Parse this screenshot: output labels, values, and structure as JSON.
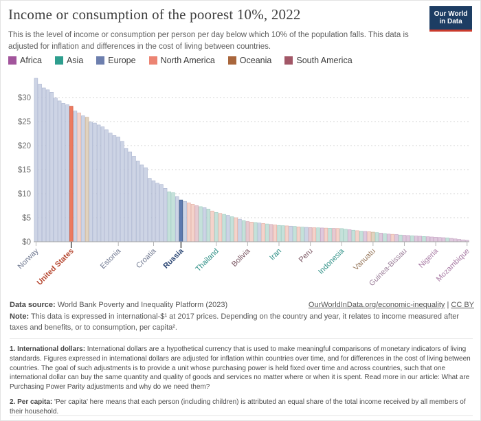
{
  "header": {
    "logo_line1": "Our World",
    "logo_line2": "in Data",
    "logo_bg": "#1d3d63",
    "logo_accent": "#cb3b2d"
  },
  "legend": {
    "items": [
      {
        "label": "Africa",
        "color": "#a2559c"
      },
      {
        "label": "Asia",
        "color": "#2e9e8e"
      },
      {
        "label": "Europe",
        "color": "#6d7fae"
      },
      {
        "label": "North America",
        "color": "#ec8473"
      },
      {
        "label": "Oceania",
        "color": "#a9663c"
      },
      {
        "label": "South America",
        "color": "#a25767"
      }
    ]
  },
  "chart_data": {
    "type": "bar",
    "title": "Income or consumption of the poorest 10%, 2022",
    "subtitle": "This is the level of income or consumption per person per day below which 10% of the population falls. This data is adjusted for inflation and differences in the cost of living between countries.",
    "xlabel": "",
    "ylabel": "",
    "ylim": [
      0,
      35
    ],
    "grid": "dashed-horizontal",
    "y_tick_values": [
      0,
      5,
      10,
      15,
      20,
      25,
      30
    ],
    "y_tick_prefix": "$",
    "values": [
      34.0,
      32.8,
      32.0,
      31.6,
      31.1,
      29.9,
      29.3,
      28.8,
      28.5,
      28.2,
      27.2,
      26.8,
      26.2,
      25.9,
      24.9,
      24.7,
      24.3,
      23.9,
      23.3,
      22.6,
      22.1,
      21.8,
      20.9,
      19.4,
      18.7,
      17.8,
      16.8,
      16.0,
      15.4,
      13.2,
      12.7,
      12.2,
      11.9,
      11.1,
      10.4,
      10.2,
      9.4,
      8.7,
      8.4,
      8.1,
      7.8,
      7.5,
      7.3,
      7.1,
      6.8,
      6.4,
      6.1,
      5.9,
      5.7,
      5.5,
      5.2,
      5.0,
      4.7,
      4.4,
      4.2,
      4.1,
      4.0,
      3.9,
      3.8,
      3.7,
      3.6,
      3.5,
      3.4,
      3.35,
      3.3,
      3.25,
      3.2,
      3.1,
      3.05,
      3.0,
      2.95,
      2.92,
      2.9,
      2.87,
      2.84,
      2.8,
      2.78,
      2.76,
      2.74,
      2.6,
      2.5,
      2.4,
      2.3,
      2.2,
      2.15,
      2.1,
      2.0,
      1.9,
      1.8,
      1.7,
      1.6,
      1.55,
      1.5,
      1.4,
      1.35,
      1.3,
      1.25,
      1.2,
      1.15,
      1.1,
      1.05,
      1.0,
      0.95,
      0.9,
      0.85,
      0.8,
      0.7,
      0.6,
      0.5,
      0.4,
      0.3
    ],
    "regions": [
      "EU",
      "EU",
      "EU",
      "EU",
      "EU",
      "EU",
      "EU",
      "EU",
      "EU",
      "NA",
      "EU",
      "NA",
      "EU",
      "OC",
      "EU",
      "EU",
      "EU",
      "EU",
      "EU",
      "EU",
      "EU",
      "EU",
      "EU",
      "EU",
      "EU",
      "EU",
      "EU",
      "EU",
      "EU",
      "EU",
      "EU",
      "EU",
      "EU",
      "EU",
      "AS",
      "AS",
      "EU",
      "EU",
      "EU",
      "NA",
      "NA",
      "SA",
      "AS",
      "EU",
      "AS",
      "NA",
      "AS",
      "NA",
      "AS",
      "EU",
      "AS",
      "NA",
      "EU",
      "AS",
      "SA",
      "NA",
      "AS",
      "EU",
      "NA",
      "AS",
      "SA",
      "NA",
      "AS",
      "AS",
      "NA",
      "EU",
      "AS",
      "NA",
      "AS",
      "EU",
      "SA",
      "NA",
      "AS",
      "AF",
      "NA",
      "AS",
      "SA",
      "NA",
      "AS",
      "AS",
      "AF",
      "AS",
      "NA",
      "AS",
      "AF",
      "NA",
      "OC",
      "AS",
      "AF",
      "AS",
      "AF",
      "NA",
      "AF",
      "AS",
      "AF",
      "AF",
      "AS",
      "AF",
      "AF",
      "AS",
      "AF",
      "AF",
      "AF",
      "AF",
      "AF",
      "AS",
      "AF",
      "AF",
      "AF",
      "AF",
      "AF"
    ],
    "highlight_indices": [
      9,
      37
    ],
    "region_colors_muted": {
      "EU": {
        "fill": "#cdd4e5",
        "stroke": "#aab4cf"
      },
      "AS": {
        "fill": "#c5e1da",
        "stroke": "#9ccabf"
      },
      "NA": {
        "fill": "#f4d3cb",
        "stroke": "#e2ab9f"
      },
      "SA": {
        "fill": "#e6cad1",
        "stroke": "#cfa1ad"
      },
      "OC": {
        "fill": "#e1d3bf",
        "stroke": "#c7ab8b"
      },
      "AF": {
        "fill": "#dec9dd",
        "stroke": "#c3a0c1"
      }
    },
    "region_colors_highlight": {
      "NA": {
        "fill": "#ec7a60",
        "stroke": "#c44f36"
      },
      "EU": {
        "fill": "#5d7ab0",
        "stroke": "#31507e"
      }
    },
    "x_tick_labels": [
      {
        "label": "Norway",
        "index": 0,
        "color": "#6f7890",
        "bold": false
      },
      {
        "label": "United States",
        "index": 9,
        "color": "#b5452e",
        "bold": true
      },
      {
        "label": "Estonia",
        "index": 21,
        "color": "#6f7890",
        "bold": false
      },
      {
        "label": "Croatia",
        "index": 30,
        "color": "#6f7890",
        "bold": false
      },
      {
        "label": "Russia",
        "index": 37,
        "color": "#2d4875",
        "bold": true
      },
      {
        "label": "Thailand",
        "index": 46,
        "color": "#2c8f85",
        "bold": false
      },
      {
        "label": "Bolivia",
        "index": 54,
        "color": "#7a5662",
        "bold": false
      },
      {
        "label": "Iran",
        "index": 62,
        "color": "#2c8f85",
        "bold": false
      },
      {
        "label": "Peru",
        "index": 70,
        "color": "#7a5662",
        "bold": false
      },
      {
        "label": "Indonesia",
        "index": 78,
        "color": "#2c8f85",
        "bold": false
      },
      {
        "label": "Vanuatu",
        "index": 86,
        "color": "#97785c",
        "bold": false
      },
      {
        "label": "Guinea-Bissau",
        "index": 94,
        "color": "#9c7f9a",
        "bold": false
      },
      {
        "label": "Nigeria",
        "index": 102,
        "color": "#a87ba4",
        "bold": false
      },
      {
        "label": "Mozambique",
        "index": 110,
        "color": "#a87ba4",
        "bold": false
      }
    ]
  },
  "footer": {
    "datasource_label": "Data source:",
    "datasource_text": " World Bank Poverty and Inequality Platform (2023)",
    "link1": "OurWorldInData.org/economic-inequality",
    "separator": " | ",
    "link2": "CC BY",
    "note_label": "Note:",
    "note_text": " This data is expressed in international-$¹ at 2017 prices. Depending on the country and year, it relates to income measured after taxes and benefits, or to consumption, per capita²."
  },
  "footnotes": {
    "fn1_label": "1. International dollars:",
    "fn1_text": " International dollars are a hypothetical currency that is used to make meaningful comparisons of monetary indicators of living standards. Figures expressed in international dollars are adjusted for inflation within countries over time, and for differences in the cost of living between countries. The goal of such adjustments is to provide a unit whose purchasing power is held fixed over time and across countries, such that one international dollar can buy the same quantity and quality of goods and services no matter where or when it is spent. Read more in our article: What are Purchasing Power Parity adjustments and why do we need them?",
    "fn2_label": "2. Per capita:",
    "fn2_text": " 'Per capita' here means that each person (including children) is attributed an equal share of the total income received by all members of their household."
  }
}
